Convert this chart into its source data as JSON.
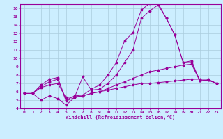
{
  "background_color": "#cceeff",
  "grid_color": "#aaccdd",
  "line_color": "#990099",
  "xlabel": "Windchill (Refroidissement éolien,°C)",
  "xlim": [
    -0.5,
    23.5
  ],
  "ylim": [
    4,
    16.5
  ],
  "xticks": [
    0,
    1,
    2,
    3,
    4,
    5,
    6,
    7,
    8,
    9,
    10,
    11,
    12,
    13,
    14,
    15,
    16,
    17,
    18,
    19,
    20,
    21,
    22,
    23
  ],
  "yticks": [
    4,
    5,
    6,
    7,
    8,
    9,
    10,
    11,
    12,
    13,
    14,
    15,
    16
  ],
  "series": [
    {
      "x": [
        0,
        1,
        2,
        3,
        4,
        5,
        6,
        7,
        8,
        9,
        10,
        11,
        12,
        13,
        14,
        15,
        16,
        17,
        18,
        19,
        20,
        21,
        22,
        23
      ],
      "y": [
        5.8,
        5.8,
        5.0,
        5.5,
        5.2,
        4.4,
        5.3,
        5.5,
        5.8,
        6.0,
        6.2,
        6.4,
        6.6,
        6.8,
        7.0,
        7.0,
        7.1,
        7.2,
        7.3,
        7.4,
        7.5,
        7.5,
        7.5,
        7.0
      ]
    },
    {
      "x": [
        0,
        1,
        2,
        3,
        4,
        5,
        6,
        7,
        8,
        9,
        10,
        11,
        12,
        13,
        14,
        15,
        16,
        17,
        18,
        19,
        20,
        21,
        22,
        23
      ],
      "y": [
        5.8,
        5.8,
        6.5,
        6.8,
        7.0,
        5.3,
        5.4,
        5.5,
        5.8,
        6.0,
        6.4,
        6.8,
        7.2,
        7.6,
        8.0,
        8.4,
        8.6,
        8.8,
        9.0,
        9.2,
        9.3,
        7.3,
        7.4,
        7.0
      ]
    },
    {
      "x": [
        0,
        1,
        2,
        3,
        4,
        5,
        6,
        7,
        8,
        9,
        10,
        11,
        12,
        13,
        14,
        15,
        16,
        17,
        18,
        19,
        20,
        21,
        22,
        23
      ],
      "y": [
        5.8,
        5.8,
        6.6,
        7.2,
        7.5,
        4.9,
        5.3,
        7.8,
        6.2,
        6.3,
        7.0,
        8.0,
        9.5,
        11.0,
        14.8,
        15.7,
        16.4,
        14.8,
        12.8,
        9.5,
        9.5,
        7.3,
        7.4,
        7.0
      ]
    },
    {
      "x": [
        0,
        1,
        2,
        3,
        4,
        5,
        6,
        7,
        8,
        9,
        10,
        11,
        12,
        13,
        14,
        15,
        16,
        17,
        18,
        19,
        20,
        21,
        22,
        23
      ],
      "y": [
        5.8,
        5.8,
        6.8,
        7.5,
        7.7,
        5.0,
        5.5,
        5.6,
        6.3,
        6.8,
        8.0,
        9.5,
        12.1,
        13.1,
        15.8,
        16.6,
        16.6,
        14.8,
        12.8,
        9.5,
        9.7,
        7.3,
        7.4,
        7.0
      ]
    }
  ]
}
